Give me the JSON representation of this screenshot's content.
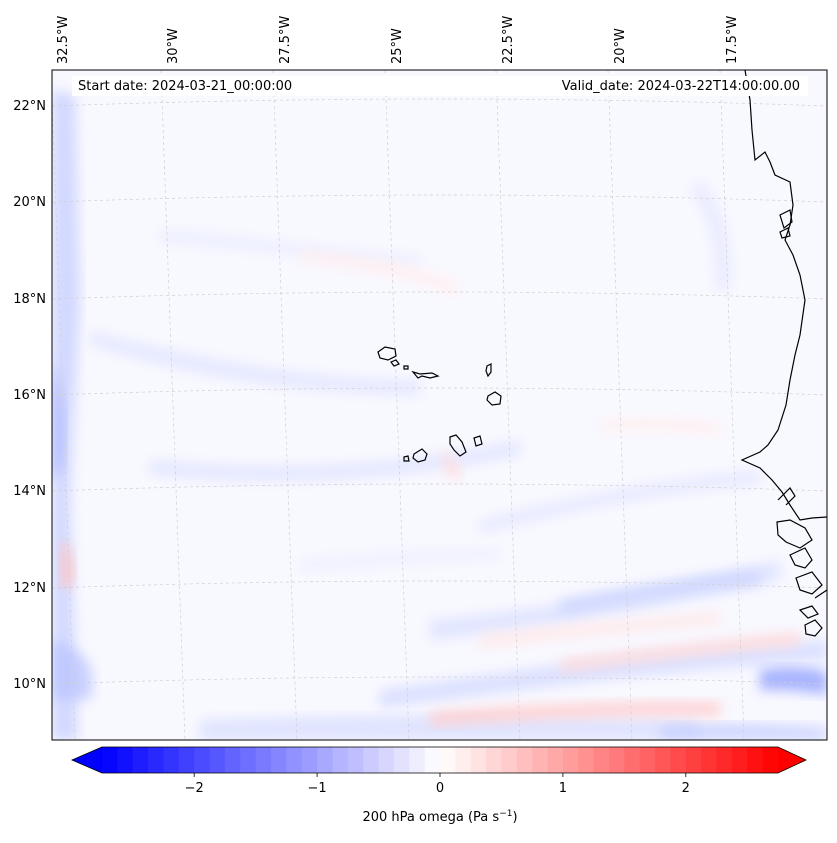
{
  "map": {
    "title_left": "Start date: 2024-03-21_00:00:00",
    "title_right": "Valid_date: 2024-03-22T14:00:00.00",
    "lon_labels": [
      "32.5°W",
      "30°W",
      "27.5°W",
      "25°W",
      "22.5°W",
      "20°W",
      "17.5°W"
    ],
    "lat_labels": [
      "22°N",
      "20°N",
      "18°N",
      "16°N",
      "14°N",
      "12°N",
      "10°N"
    ],
    "field": "200 hPa omega",
    "units": "Pa s",
    "units_exponent": "−1"
  },
  "colorbar": {
    "ticks": [
      "−2",
      "−1",
      "0",
      "1",
      "2"
    ],
    "tick_values": [
      -2,
      -1,
      0,
      1,
      2
    ],
    "vmin": -2.75,
    "vmax": 2.75,
    "levels": 44,
    "colors": {
      "negative": "#0000ff",
      "neutral": "#ffffff",
      "positive": "#ff0000"
    }
  }
}
